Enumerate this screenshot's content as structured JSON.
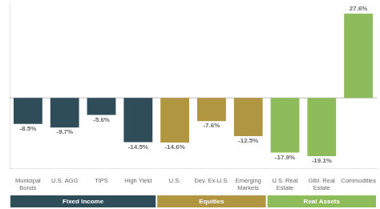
{
  "chart_data": {
    "type": "bar",
    "categories": [
      "Municipal\nBonds",
      "U.S. AGG",
      "TIPS",
      "High Yield",
      "U.S.",
      "Dev. Ex-U.S.",
      "Emerging\nMarkets",
      "U.S. Real\nEstate",
      "Glbl. Real\nEstate",
      "Commodities"
    ],
    "values": [
      -8.5,
      -9.7,
      -5.6,
      -14.5,
      -14.6,
      -7.6,
      -12.5,
      -17.9,
      -19.1,
      27.6
    ],
    "value_labels": [
      "-8.5%",
      "-9.7%",
      "-5.6%",
      "-14.5%",
      "-14.6%",
      "-7.6%",
      "-12.5%",
      "-17.9%",
      "-19.1%",
      "27.6%"
    ],
    "colors": [
      "#2e4d58",
      "#2e4d58",
      "#2e4d58",
      "#2e4d58",
      "#b09640",
      "#b09640",
      "#b09640",
      "#8fbc5a",
      "#8fbc5a",
      "#8fbc5a"
    ],
    "groups": [
      {
        "name": "Fixed Income",
        "color": "#2e4d58"
      },
      {
        "name": "Equities",
        "color": "#b09640"
      },
      {
        "name": "Real Assets",
        "color": "#8fbc5a"
      }
    ],
    "ylim": [
      -23,
      31
    ],
    "grid": false,
    "data_labels": true,
    "tick_labels": "x"
  }
}
